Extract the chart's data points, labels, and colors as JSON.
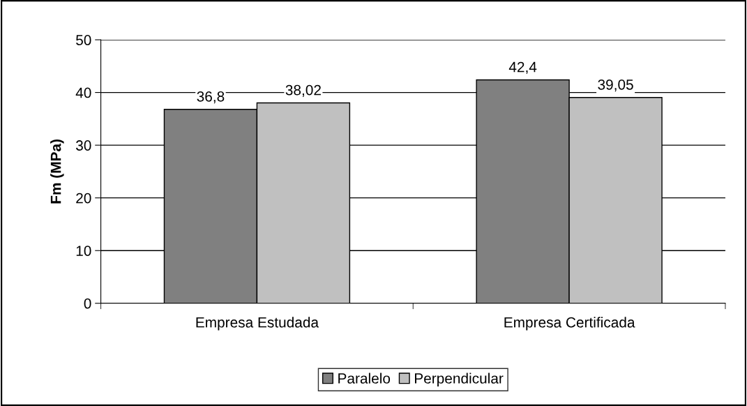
{
  "chart_data": {
    "type": "bar",
    "ylabel": "Fm (MPa)",
    "categories": [
      "Empresa Estudada",
      "Empresa Certificada"
    ],
    "series": [
      {
        "name": "Paralelo",
        "color": "#808080",
        "values": [
          36.8,
          42.4
        ],
        "value_labels": [
          "36,8",
          "42,4"
        ]
      },
      {
        "name": "Perpendicular",
        "color": "#c0c0c0",
        "values": [
          38.02,
          39.05
        ],
        "value_labels": [
          "38,02",
          "39,05"
        ]
      }
    ],
    "ylim": [
      0,
      50
    ],
    "yticks": [
      0,
      10,
      20,
      30,
      40,
      50
    ],
    "grid": "y",
    "legend": "bottom"
  }
}
